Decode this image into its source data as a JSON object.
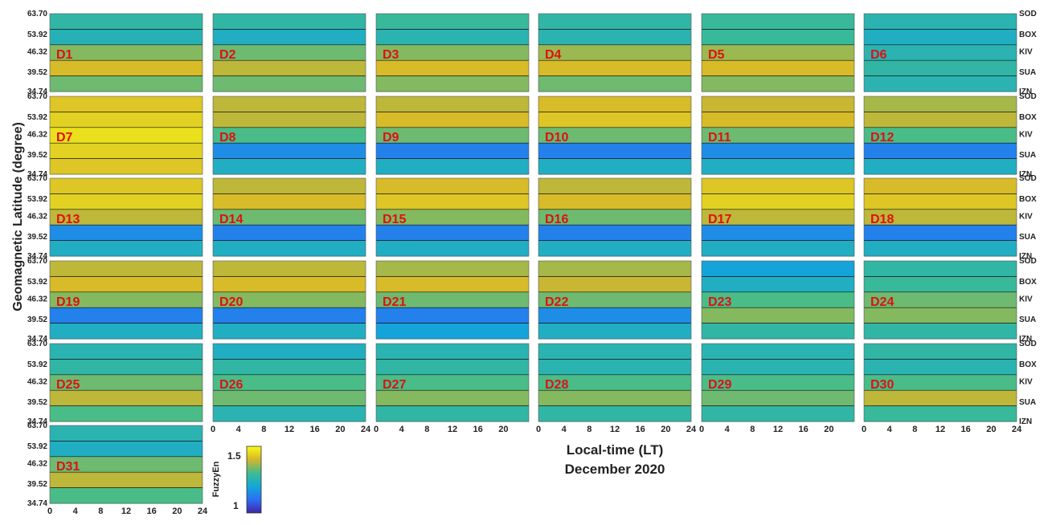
{
  "chart_data": {
    "type": "heatmap",
    "series_kind": "contour",
    "colormap": "parula",
    "xlabel": "Local-time (LT)",
    "caption": "December 2020",
    "ylabel": "Geomagnetic Latitude (degree)",
    "colorbar": {
      "label": "FuzzyEn",
      "ticks": [
        "1.5",
        "1"
      ],
      "range": [
        0.95,
        1.6
      ]
    },
    "y_ticks": [
      "63.70",
      "53.92",
      "46.32",
      "39.52",
      "34.74"
    ],
    "stations": [
      "SOD",
      "BOX",
      "KIV",
      "SUA",
      "IZN"
    ],
    "x_ticks_full": [
      "0",
      "4",
      "8",
      "12",
      "16",
      "20",
      "24"
    ],
    "x_ticks_trimmed": [
      "0",
      "4",
      "8",
      "12",
      "16",
      "20"
    ],
    "xlim": [
      0,
      24
    ],
    "ylim": [
      34.74,
      63.7
    ],
    "panels": [
      "D1",
      "D2",
      "D3",
      "D4",
      "D5",
      "D6",
      "D7",
      "D8",
      "D9",
      "D10",
      "D11",
      "D12",
      "D13",
      "D14",
      "D15",
      "D16",
      "D17",
      "D18",
      "D19",
      "D20",
      "D21",
      "D22",
      "D23",
      "D24",
      "D25",
      "D26",
      "D27",
      "D28",
      "D29",
      "D30",
      "D31"
    ],
    "panel_mean_fuzzyen": [
      1.37,
      1.33,
      1.36,
      1.38,
      1.4,
      1.3,
      1.52,
      1.33,
      1.35,
      1.37,
      1.36,
      1.33,
      1.42,
      1.36,
      1.38,
      1.35,
      1.42,
      1.36,
      1.36,
      1.36,
      1.33,
      1.35,
      1.27,
      1.33,
      1.36,
      1.3,
      1.33,
      1.32,
      1.31,
      1.33,
      1.33
    ],
    "panel_profile_fuzzyen": [
      [
        1.3,
        1.27,
        1.4,
        1.48,
        1.38
      ],
      [
        1.3,
        1.25,
        1.38,
        1.45,
        1.38
      ],
      [
        1.32,
        1.28,
        1.4,
        1.48,
        1.4
      ],
      [
        1.3,
        1.28,
        1.42,
        1.48,
        1.38
      ],
      [
        1.32,
        1.32,
        1.42,
        1.48,
        1.4
      ],
      [
        1.28,
        1.25,
        1.28,
        1.3,
        1.28
      ],
      [
        1.5,
        1.52,
        1.55,
        1.52,
        1.5
      ],
      [
        1.45,
        1.45,
        1.35,
        1.15,
        1.25
      ],
      [
        1.45,
        1.48,
        1.38,
        1.12,
        1.25
      ],
      [
        1.48,
        1.5,
        1.38,
        1.12,
        1.25
      ],
      [
        1.46,
        1.48,
        1.38,
        1.15,
        1.25
      ],
      [
        1.43,
        1.45,
        1.35,
        1.12,
        1.25
      ],
      [
        1.5,
        1.52,
        1.45,
        1.15,
        1.25
      ],
      [
        1.45,
        1.48,
        1.38,
        1.12,
        1.25
      ],
      [
        1.48,
        1.5,
        1.4,
        1.12,
        1.25
      ],
      [
        1.45,
        1.48,
        1.38,
        1.12,
        1.25
      ],
      [
        1.5,
        1.52,
        1.45,
        1.15,
        1.25
      ],
      [
        1.48,
        1.5,
        1.45,
        1.12,
        1.25
      ],
      [
        1.45,
        1.48,
        1.4,
        1.12,
        1.25
      ],
      [
        1.45,
        1.48,
        1.4,
        1.12,
        1.25
      ],
      [
        1.43,
        1.48,
        1.38,
        1.12,
        1.2
      ],
      [
        1.43,
        1.46,
        1.38,
        1.15,
        1.25
      ],
      [
        1.2,
        1.25,
        1.35,
        1.4,
        1.3
      ],
      [
        1.3,
        1.32,
        1.38,
        1.4,
        1.3
      ],
      [
        1.28,
        1.3,
        1.38,
        1.45,
        1.35
      ],
      [
        1.25,
        1.3,
        1.35,
        1.38,
        1.28
      ],
      [
        1.28,
        1.3,
        1.35,
        1.4,
        1.3
      ],
      [
        1.28,
        1.28,
        1.35,
        1.4,
        1.3
      ],
      [
        1.28,
        1.28,
        1.35,
        1.38,
        1.3
      ],
      [
        1.3,
        1.28,
        1.35,
        1.45,
        1.32
      ],
      [
        1.28,
        1.25,
        1.38,
        1.45,
        1.35
      ]
    ]
  }
}
